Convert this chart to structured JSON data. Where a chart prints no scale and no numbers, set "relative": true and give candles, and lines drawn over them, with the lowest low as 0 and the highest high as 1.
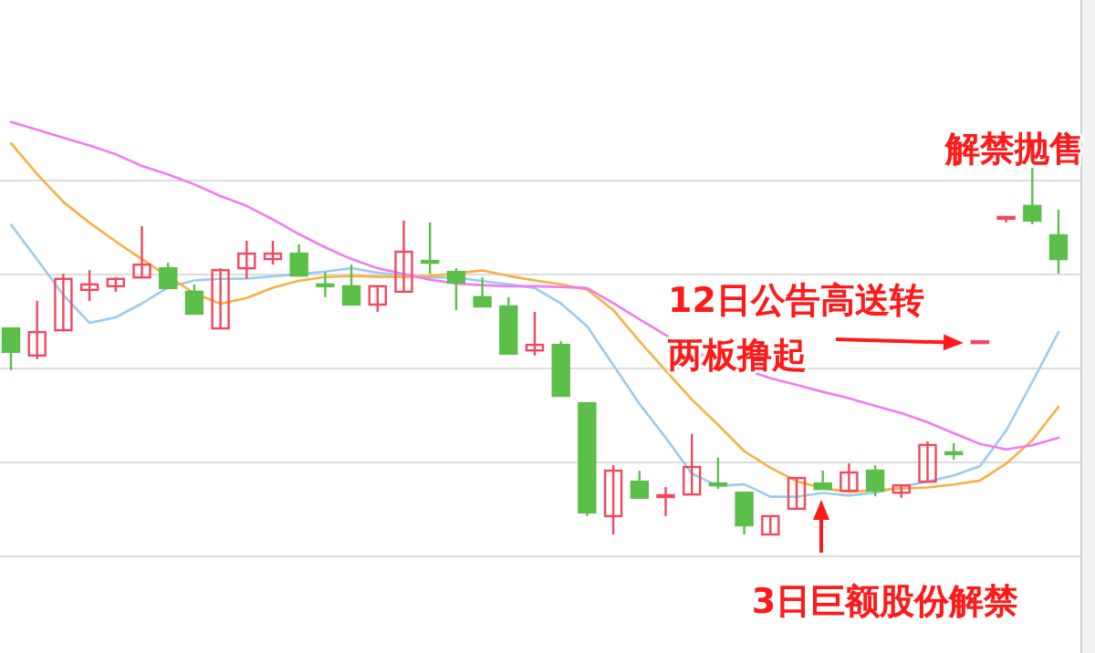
{
  "chart_data": {
    "type": "candlestick",
    "relative": true,
    "grid": "y",
    "categories": [
      null,
      null,
      null,
      null,
      null,
      null,
      null,
      null,
      null,
      null,
      null,
      null,
      null,
      null,
      null,
      null,
      null,
      null,
      null,
      null,
      null,
      null,
      null,
      null,
      null,
      null,
      null,
      null,
      null,
      null,
      null,
      null,
      null,
      null,
      null,
      null,
      null,
      null,
      null,
      null,
      null
    ],
    "ohlc": [
      [
        0.562,
        0.562,
        0.448,
        0.498
      ],
      [
        0.488,
        0.637,
        0.478,
        0.552
      ],
      [
        0.557,
        0.711,
        0.557,
        0.697
      ],
      [
        0.667,
        0.721,
        0.637,
        0.682
      ],
      [
        0.677,
        0.701,
        0.662,
        0.697
      ],
      [
        0.701,
        0.841,
        0.701,
        0.736
      ],
      [
        0.726,
        0.741,
        0.672,
        0.672
      ],
      [
        0.662,
        0.682,
        0.602,
        0.602
      ],
      [
        0.562,
        0.726,
        0.562,
        0.721
      ],
      [
        0.726,
        0.801,
        0.697,
        0.766
      ],
      [
        0.751,
        0.801,
        0.736,
        0.766
      ],
      [
        0.766,
        0.791,
        0.706,
        0.706
      ],
      [
        0.682,
        0.716,
        0.647,
        0.679
      ],
      [
        0.677,
        0.736,
        0.627,
        0.627
      ],
      [
        0.627,
        0.677,
        0.607,
        0.677
      ],
      [
        0.662,
        0.856,
        0.662,
        0.771
      ],
      [
        0.746,
        0.851,
        0.711,
        0.744
      ],
      [
        0.716,
        0.726,
        0.612,
        0.687
      ],
      [
        0.647,
        0.701,
        0.622,
        0.622
      ],
      [
        0.622,
        0.647,
        0.493,
        0.493
      ],
      [
        0.502,
        0.607,
        0.488,
        0.517
      ],
      [
        0.517,
        0.527,
        0.378,
        0.378
      ],
      [
        0.358,
        0.358,
        0.05,
        0.06
      ],
      [
        0.05,
        0.189,
        0,
        0.174
      ],
      [
        0.144,
        0.174,
        0.1,
        0.1
      ],
      [
        0.104,
        0.129,
        0.05,
        0.107
      ],
      [
        0.109,
        0.274,
        0.109,
        0.184
      ],
      [
        0.139,
        0.209,
        0.124,
        0.137
      ],
      [
        0.114,
        0.114,
        0,
        0.025
      ],
      [
        0,
        0.05,
        0,
        0.05
      ],
      [
        0.07,
        0.154,
        0.07,
        0.154
      ],
      [
        0.139,
        0.174,
        0.124,
        0.124
      ],
      [
        0.119,
        0.194,
        0.119,
        0.169
      ],
      [
        0.174,
        0.189,
        0.104,
        0.119
      ],
      [
        0.114,
        0.134,
        0.1,
        0.134
      ],
      [
        0.144,
        0.254,
        0.144,
        0.244
      ],
      [
        0.224,
        0.249,
        0.204,
        0.221
      ],
      [
        0.527,
        0.527,
        0.527,
        0.527
      ],
      [
        0.866,
        0.866,
        0.851,
        0.866
      ],
      [
        0.896,
        1,
        0.846,
        0.856
      ],
      [
        0.816,
        0.886,
        0.711,
        0.751
      ]
    ],
    "colors": [
      "#5cbf4a",
      "#f2485e",
      "#f2485e",
      "#f2485e",
      "#f2485e",
      "#f2485e",
      "#5cbf4a",
      "#5cbf4a",
      "#f2485e",
      "#f2485e",
      "#f2485e",
      "#5cbf4a",
      "#5cbf4a",
      "#5cbf4a",
      "#f2485e",
      "#f2485e",
      "#5cbf4a",
      "#5cbf4a",
      "#5cbf4a",
      "#5cbf4a",
      "#f2485e",
      "#5cbf4a",
      "#5cbf4a",
      "#f2485e",
      "#5cbf4a",
      "#f2485e",
      "#f2485e",
      "#5cbf4a",
      "#5cbf4a",
      "#f2485e",
      "#f2485e",
      "#5cbf4a",
      "#f2485e",
      "#5cbf4a",
      "#f2485e",
      "#f2485e",
      "#5cbf4a",
      "#f2485e",
      "#f2485e",
      "#5cbf4a",
      "#5cbf4a"
    ],
    "series": [
      {
        "type": "line",
        "color": "#9ccbee",
        "values": [
          0.845,
          0.75,
          0.653,
          0.577,
          0.592,
          0.63,
          0.674,
          0.693,
          0.697,
          0.698,
          0.704,
          0.71,
          0.717,
          0.726,
          0.714,
          0.706,
          0.701,
          0.701,
          0.691,
          0.683,
          0.672,
          0.63,
          0.568,
          0.462,
          0.356,
          0.264,
          0.166,
          0.132,
          0.137,
          0.103,
          0.103,
          0.113,
          0.106,
          0.114,
          0.13,
          0.144,
          0.161,
          0.186,
          0.283,
          0.416,
          0.552
        ]
      },
      {
        "type": "line",
        "color": "#f8b042",
        "values": [
          1.067,
          0.983,
          0.907,
          0.85,
          0.799,
          0.751,
          0.704,
          0.658,
          0.629,
          0.645,
          0.673,
          0.692,
          0.702,
          0.705,
          0.703,
          0.702,
          0.705,
          0.712,
          0.72,
          0.705,
          0.693,
          0.682,
          0.668,
          0.612,
          0.527,
          0.447,
          0.368,
          0.299,
          0.227,
          0.182,
          0.145,
          0.126,
          0.116,
          0.121,
          0.125,
          0.128,
          0.136,
          0.147,
          0.193,
          0.257,
          0.348
        ]
      },
      {
        "type": "line",
        "color": "#f07cf0",
        "values": [
          1.125,
          1.104,
          1.082,
          1.061,
          1.037,
          1.005,
          0.982,
          0.955,
          0.923,
          0.896,
          0.859,
          0.819,
          0.783,
          0.751,
          0.726,
          0.71,
          0.695,
          0.684,
          0.68,
          0.677,
          0.677,
          0.675,
          0.672,
          0.631,
          0.587,
          0.544,
          0.5,
          0.474,
          0.45,
          0.426,
          0.408,
          0.389,
          0.371,
          0.351,
          0.331,
          0.306,
          0.276,
          0.247,
          0.232,
          0.243,
          0.264
        ]
      }
    ],
    "annotations": [
      "解禁抛售",
      "12日公告高送转两板撸起",
      "3日巨额股份解禁"
    ]
  }
}
